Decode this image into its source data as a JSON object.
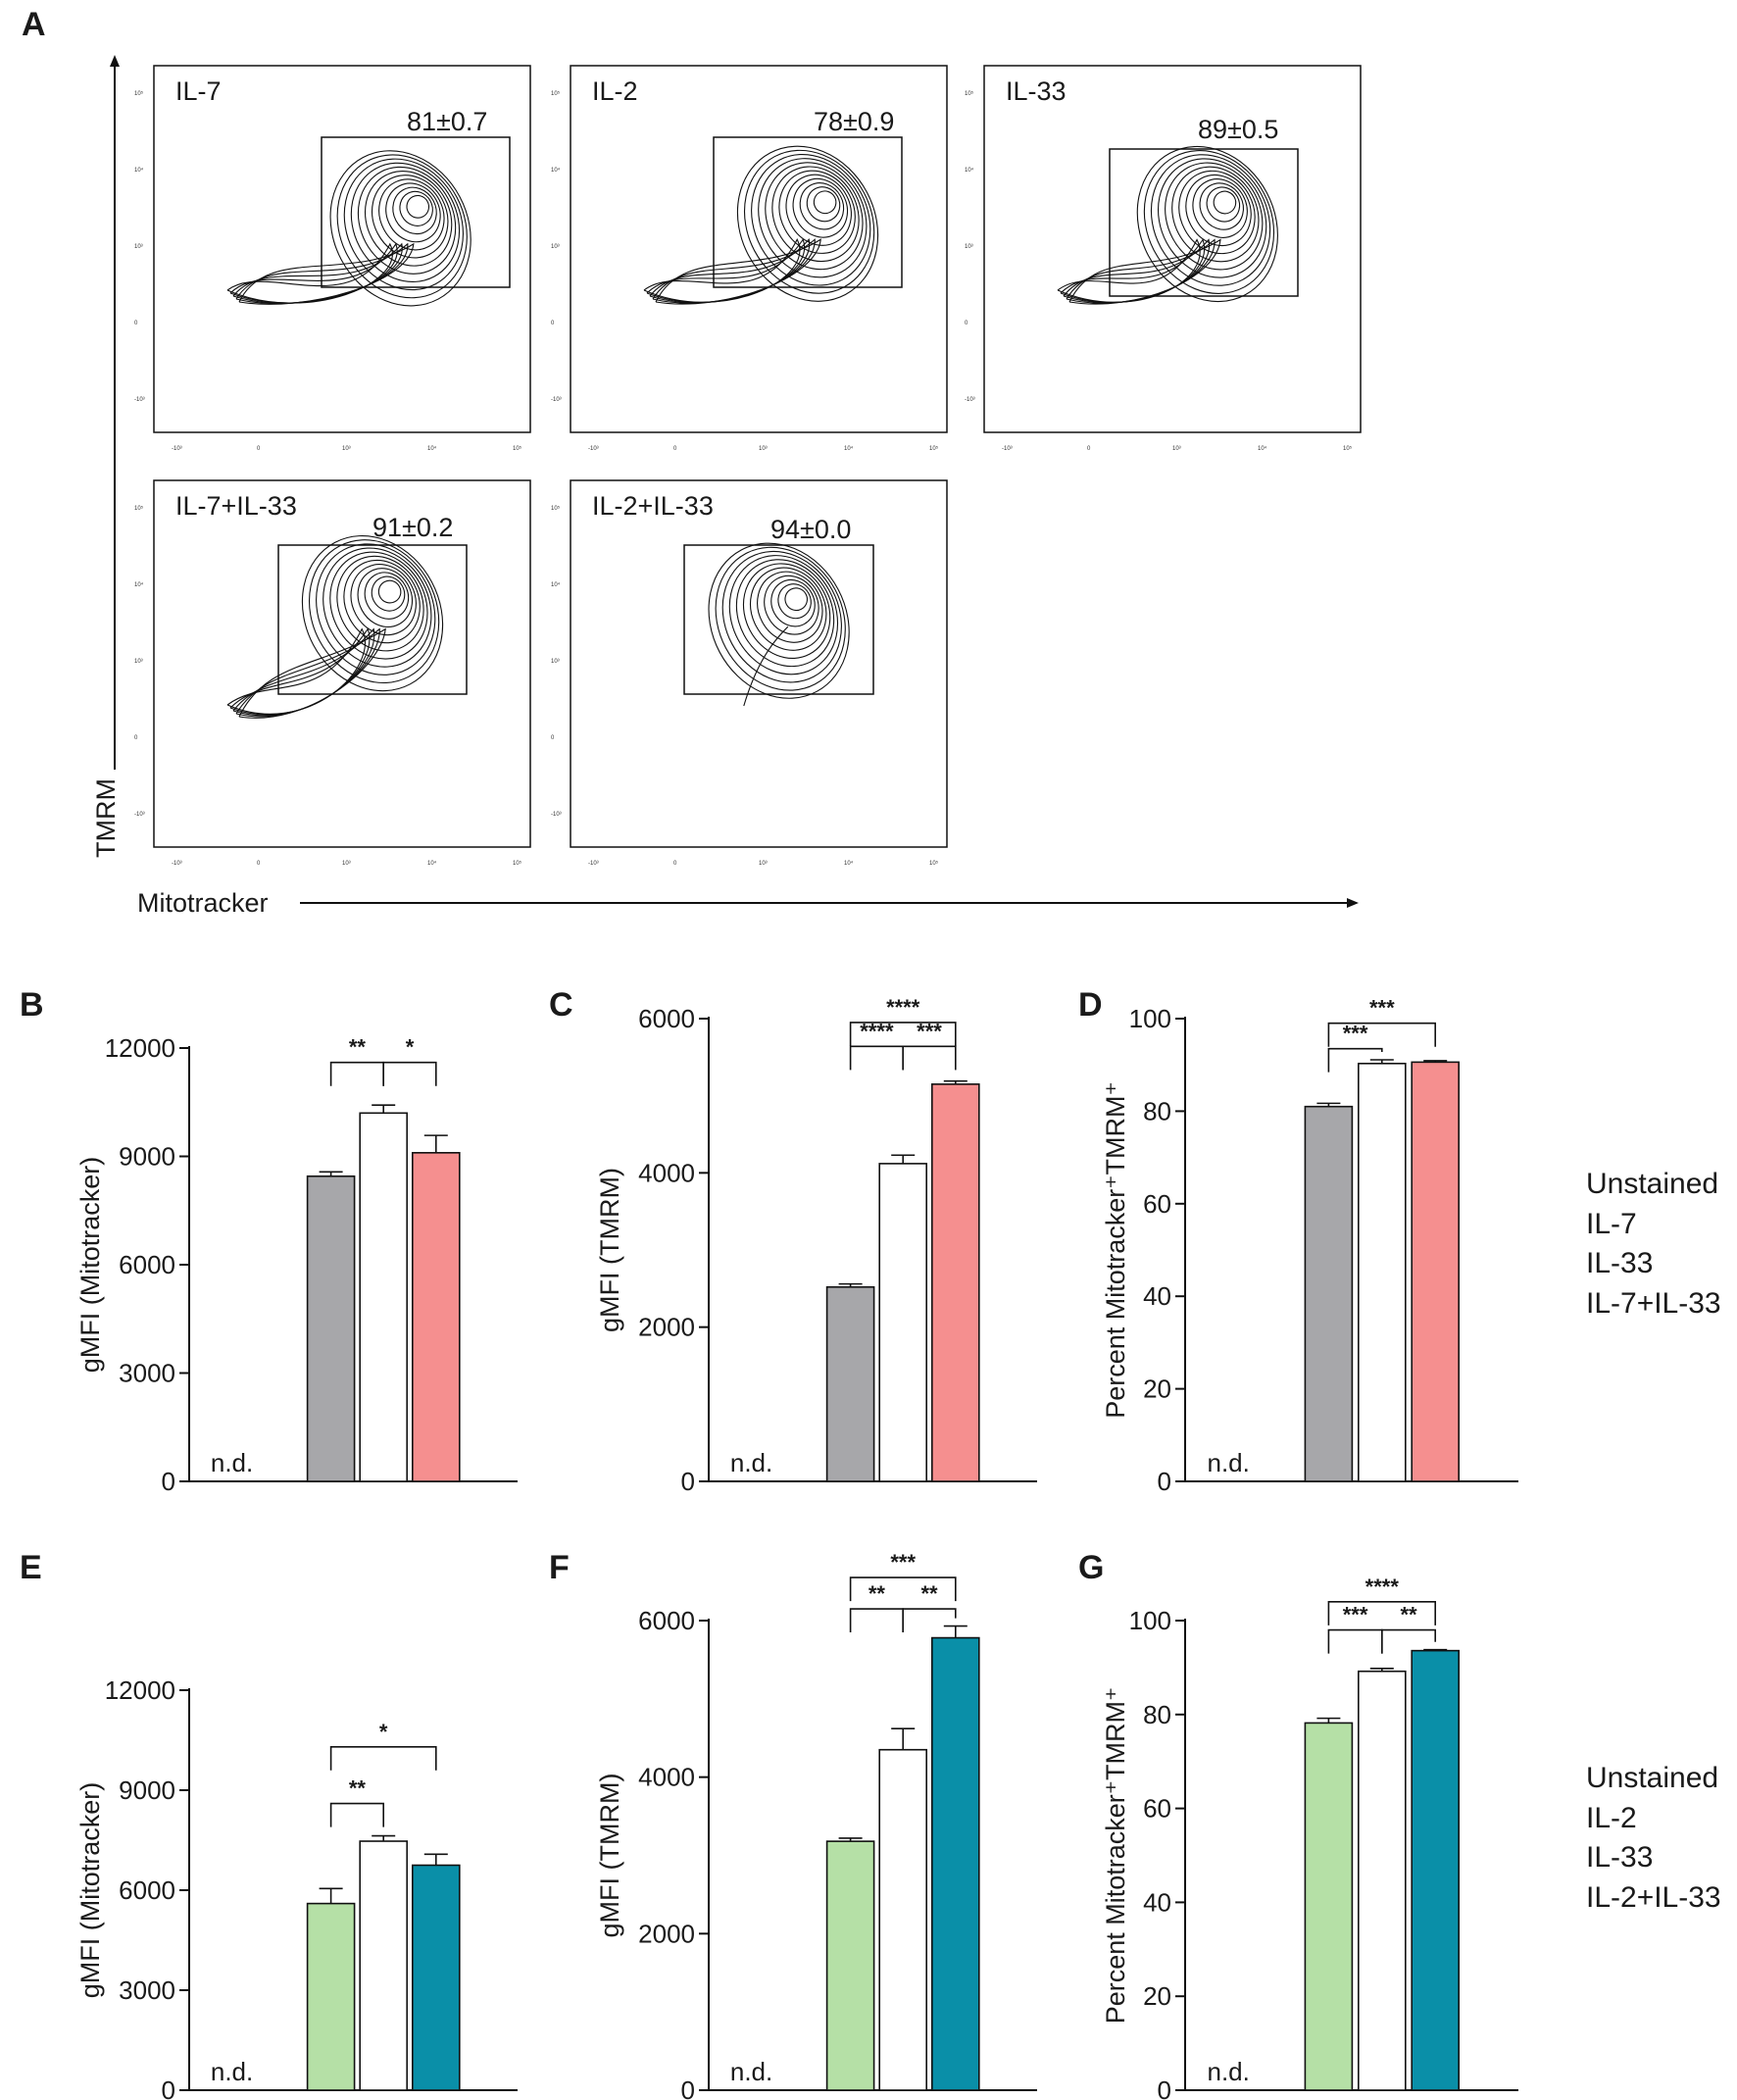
{
  "panel_letters": [
    "A",
    "B",
    "C",
    "D",
    "E",
    "F",
    "G"
  ],
  "flow": {
    "y_axis_label": "TMRM",
    "x_axis_label": "Mitotracker",
    "plots": [
      {
        "label": "IL-7",
        "pct": "81±0.7"
      },
      {
        "label": "IL-2",
        "pct": "78±0.9"
      },
      {
        "label": "IL-33",
        "pct": "89±0.5"
      },
      {
        "label": "IL-7+IL-33",
        "pct": "91±0.2"
      },
      {
        "label": "IL-2+IL-33",
        "pct": "94±0.0"
      }
    ],
    "y_ticks": [
      "10⁵",
      "10⁴",
      "10³",
      "0",
      "-10³"
    ],
    "x_ticks": [
      "-10³",
      "0",
      "10³",
      "10⁴",
      "10⁵"
    ]
  },
  "legends": [
    {
      "items": [
        {
          "label": "Unstained",
          "color": "#b291c9"
        },
        {
          "label": "IL-7",
          "color": "#9a9a9a"
        },
        {
          "label": "IL-33",
          "color": "#111111"
        },
        {
          "label": "IL-7+IL-33",
          "color": "#e8706f"
        }
      ]
    },
    {
      "items": [
        {
          "label": "Unstained",
          "color": "#b291c9"
        },
        {
          "label": "IL-2",
          "color": "#8fd07f"
        },
        {
          "label": "IL-33",
          "color": "#111111"
        },
        {
          "label": "IL-2+IL-33",
          "color": "#1a8aa2"
        }
      ]
    }
  ],
  "chart_data": [
    {
      "panel": "B",
      "type": "bar",
      "ylabel": "gMFI (Mitotracker)",
      "ylim": [
        0,
        12000
      ],
      "yticks": [
        0,
        3000,
        6000,
        9000,
        12000
      ],
      "categories": [
        "Unstained",
        "IL-7",
        "IL-33",
        "IL-7+IL-33"
      ],
      "values": [
        null,
        8450,
        10200,
        9100
      ],
      "errors": [
        0,
        120,
        220,
        480
      ],
      "colors": [
        "#b291c9",
        "#a7a7aa",
        "#ffffff",
        "#f58f8f"
      ],
      "nd_label": "n.d.",
      "significance": [
        {
          "from": 1,
          "to": 2,
          "label": "**",
          "y": 11600
        },
        {
          "from": 2,
          "to": 3,
          "label": "*",
          "y": 11600
        }
      ]
    },
    {
      "panel": "C",
      "type": "bar",
      "ylabel": "gMFI (TMRM)",
      "ylim": [
        0,
        6000
      ],
      "yticks": [
        0,
        2000,
        4000,
        6000
      ],
      "categories": [
        "Unstained",
        "IL-7",
        "IL-33",
        "IL-7+IL-33"
      ],
      "values": [
        null,
        2520,
        4120,
        5150
      ],
      "errors": [
        0,
        40,
        110,
        40
      ],
      "colors": [
        "#b291c9",
        "#a7a7aa",
        "#ffffff",
        "#f58f8f"
      ],
      "nd_label": "n.d.",
      "significance": [
        {
          "from": 1,
          "to": 3,
          "label": "****",
          "y": 5950
        },
        {
          "from": 1,
          "to": 2,
          "label": "****",
          "y": 5640
        },
        {
          "from": 2,
          "to": 3,
          "label": "***",
          "y": 5640
        }
      ]
    },
    {
      "panel": "D",
      "type": "bar",
      "ylabel": "Percent Mitotracker⁺TMRM⁺",
      "ylim": [
        0,
        100
      ],
      "yticks": [
        0,
        20,
        40,
        60,
        80,
        100
      ],
      "categories": [
        "Unstained",
        "IL-7",
        "IL-33",
        "IL-7+IL-33"
      ],
      "values": [
        null,
        81,
        90.3,
        90.6
      ],
      "errors": [
        0,
        0.7,
        0.8,
        0.3
      ],
      "colors": [
        "#b291c9",
        "#a7a7aa",
        "#ffffff",
        "#f58f8f"
      ],
      "nd_label": "n.d.",
      "significance": [
        {
          "from": 1,
          "to": 3,
          "label": "***",
          "y": 99
        },
        {
          "from": 1,
          "to": 2,
          "label": "***",
          "y": 93.5
        }
      ]
    },
    {
      "panel": "E",
      "type": "bar",
      "ylabel": "gMFI (Mitotracker)",
      "ylim": [
        0,
        12000
      ],
      "yticks": [
        0,
        3000,
        6000,
        9000,
        12000
      ],
      "categories": [
        "Unstained",
        "IL-2",
        "IL-33",
        "IL-2+IL-33"
      ],
      "values": [
        null,
        5600,
        7470,
        6750
      ],
      "errors": [
        0,
        450,
        160,
        330
      ],
      "colors": [
        "#b291c9",
        "#b5e0a6",
        "#ffffff",
        "#0a8fa8"
      ],
      "nd_label": "n.d.",
      "significance": [
        {
          "from": 1,
          "to": 3,
          "label": "*",
          "y": 10300
        },
        {
          "from": 1,
          "to": 2,
          "label": "**",
          "y": 8600
        }
      ]
    },
    {
      "panel": "F",
      "type": "bar",
      "ylabel": "gMFI (TMRM)",
      "ylim": [
        0,
        6000
      ],
      "yticks": [
        0,
        2000,
        4000,
        6000
      ],
      "categories": [
        "Unstained",
        "IL-2",
        "IL-33",
        "IL-2+IL-33"
      ],
      "values": [
        null,
        3180,
        4350,
        5780
      ],
      "errors": [
        0,
        40,
        270,
        150
      ],
      "colors": [
        "#b291c9",
        "#b5e0a6",
        "#ffffff",
        "#0a8fa8"
      ],
      "nd_label": "n.d.",
      "significance": [
        {
          "from": 1,
          "to": 3,
          "label": "***",
          "y": 6550
        },
        {
          "from": 1,
          "to": 2,
          "label": "**",
          "y": 6150
        },
        {
          "from": 2,
          "to": 3,
          "label": "**",
          "y": 6150
        }
      ]
    },
    {
      "panel": "G",
      "type": "bar",
      "ylabel": "Percent Mitotracker⁺TMRM⁺",
      "ylim": [
        0,
        100
      ],
      "yticks": [
        0,
        20,
        40,
        60,
        80,
        100
      ],
      "categories": [
        "Unstained",
        "IL-2",
        "IL-33",
        "IL-2+IL-33"
      ],
      "values": [
        null,
        78.2,
        89.2,
        93.6
      ],
      "errors": [
        0,
        1.0,
        0.6,
        0.2
      ],
      "colors": [
        "#b291c9",
        "#b5e0a6",
        "#ffffff",
        "#0a8fa8"
      ],
      "nd_label": "n.d.",
      "significance": [
        {
          "from": 1,
          "to": 3,
          "label": "****",
          "y": 104
        },
        {
          "from": 1,
          "to": 2,
          "label": "***",
          "y": 98
        },
        {
          "from": 2,
          "to": 3,
          "label": "**",
          "y": 98
        }
      ]
    }
  ]
}
